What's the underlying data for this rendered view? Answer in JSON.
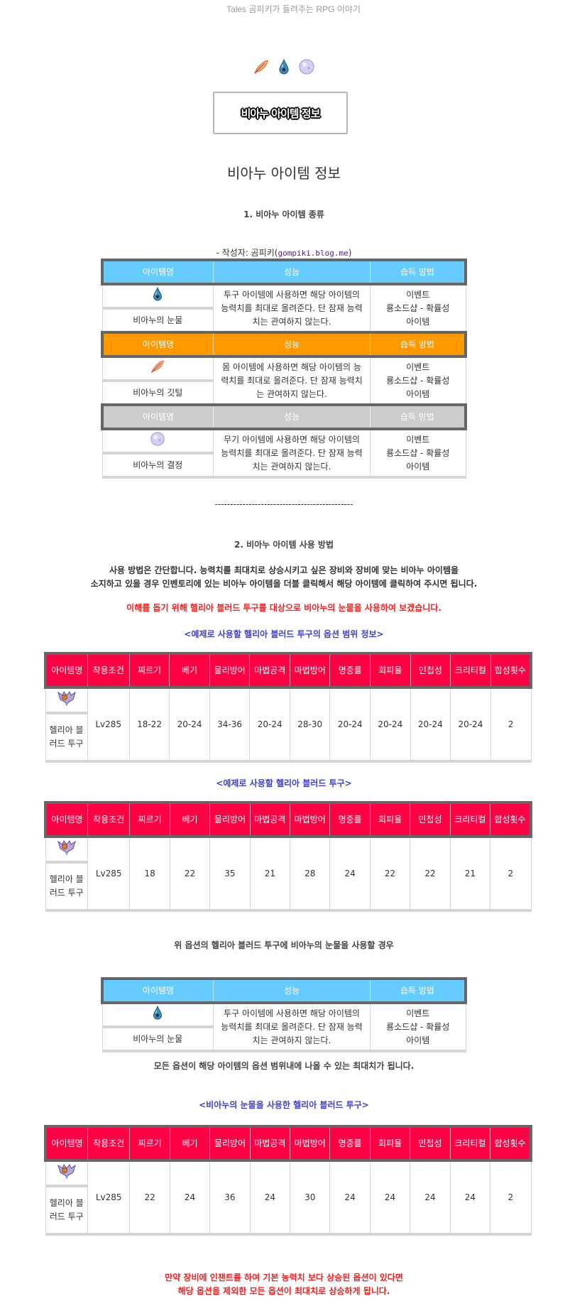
{
  "blog_title": "Tales 곰피키가 들려주는 RPG 이야기",
  "banner_text": "비아누 아이템 정보",
  "page_title": "비아누 아이템 정보",
  "section1": {
    "heading": "1. 비아누 아이템 종류",
    "author_prefix": "- 작성자: 곰피키(",
    "author_link": "gompiki.blog.me",
    "author_suffix": ")"
  },
  "item_table_headers": [
    "아이템명",
    "성능",
    "습득 방법"
  ],
  "items": [
    {
      "icon": "tear-drop-icon",
      "header_color": "#66ccff",
      "name": "비아누의 눈물",
      "effect": "투구 아이템에 사용하면 해당 아이템의 능력치를 최대로 올려준다. 단 잠재 능력치는 관여하지 않는다.",
      "acquire": [
        "이벤트",
        "룡소드샵 - 확률성",
        "아이템"
      ]
    },
    {
      "icon": "feather-icon",
      "header_color": "#ff9900",
      "name": "비아누의 깃털",
      "effect": "몸 아이템에 사용하면 해당 아이템의 능력치를 최대로 올려준다. 단 잠재 능력치는 관여하지 않는다.",
      "acquire": [
        "이벤트",
        "룡소드샵 - 확률성",
        "아이템"
      ]
    },
    {
      "icon": "crystal-orb-icon",
      "header_color": "#cccccc",
      "name": "비아누의 결정",
      "effect": "무기 아이템에 사용하면 해당 아이템의 능력치를 최대로 올려준다. 단 잠재 능력치는 관여하지 않는다.",
      "acquire": [
        "이벤트",
        "룡소드샵 - 확률성",
        "아이템"
      ]
    }
  ],
  "divider": "---------------------------------------------",
  "section2": {
    "heading": "2. 비아누 아이템 사용 방법",
    "para1": "사용 방법은 간단합니다. 능력치를 최대치로 상승시키고 싶은 장비와 장비에 맞는 비아누 아이템을",
    "para2": "소지하고 있을 경우 인벤토리에 있는 비아누 아이템을 더블 클릭해서 해당 아이템에 클릭하여 주시면 됩니다.",
    "red_note": "이해를 돕기 위해 헬리아 블러드 투구를 대상으로 비아누의 눈물을 사용하여 보겠습니다.",
    "caption_range": "<예제로 사용할 헬리아 블러드 투구의 옵션 범위 정보>",
    "caption_example": "<예제로 사용할 헬리아 블러드 투구>",
    "text_use": "위 옵션의 헬리아 블러드 투구에 비아누의 눈물을 사용할 경우",
    "text_result": "모든 옵션이 해당 아이템의 옵션 범위내에 나올 수 있는 최대치가 됩니다.",
    "caption_after": "<비아누의 눈물을 사용한 헬리아 블러드 투구>",
    "final_red_1": "만약 장비에 인챈트를 하여 기본 능력치 보다 상승된 옵션이 있다면",
    "final_red_2": "해당 옵션을 제외한 모든 옵션이 최대치로 상승하게 됩니다."
  },
  "stat_headers": [
    "아이템명",
    "착용조건",
    "찌르기",
    "베기",
    "물리방어",
    "마법공격",
    "마법방어",
    "명중률",
    "회피율",
    "민첩성",
    "크리티컬",
    "합성횟수"
  ],
  "stat_header_color": "#ff0044",
  "helmet": {
    "icon": "helia-blood-helmet-icon",
    "name": "헬리아 블러드 투구"
  },
  "stat_tables": {
    "range": [
      "Lv285",
      "18-22",
      "20-24",
      "34-36",
      "20-24",
      "28-30",
      "20-24",
      "20-24",
      "20-24",
      "20-24",
      "2"
    ],
    "example": [
      "Lv285",
      "18",
      "22",
      "35",
      "21",
      "28",
      "24",
      "22",
      "22",
      "21",
      "2"
    ],
    "after": [
      "Lv285",
      "22",
      "24",
      "36",
      "24",
      "30",
      "24",
      "24",
      "24",
      "24",
      "2"
    ]
  }
}
